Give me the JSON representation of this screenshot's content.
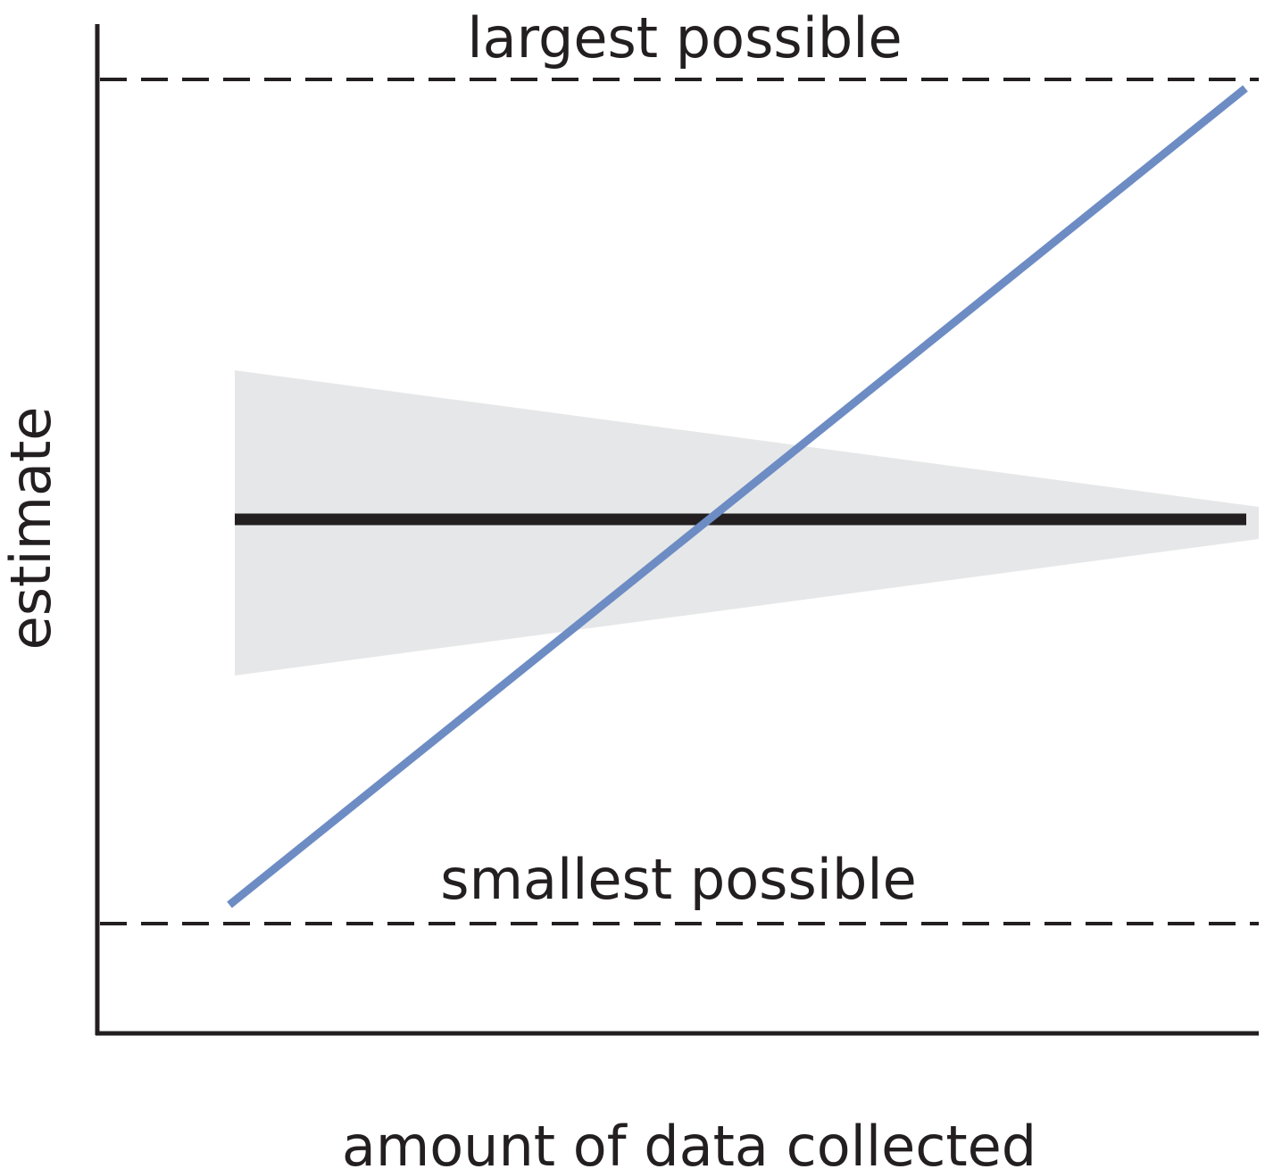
{
  "labels": {
    "upper_bound": "largest possible",
    "lower_bound": "smallest possible",
    "y_axis": "estimate",
    "x_axis": "amount of data collected"
  },
  "colors": {
    "axis": "#231f20",
    "dashed_lines": "#231f20",
    "rising_line": "#6d8cc4",
    "flat_line": "#231f20",
    "band": "#e6e7e8",
    "text": "#231f20"
  }
}
